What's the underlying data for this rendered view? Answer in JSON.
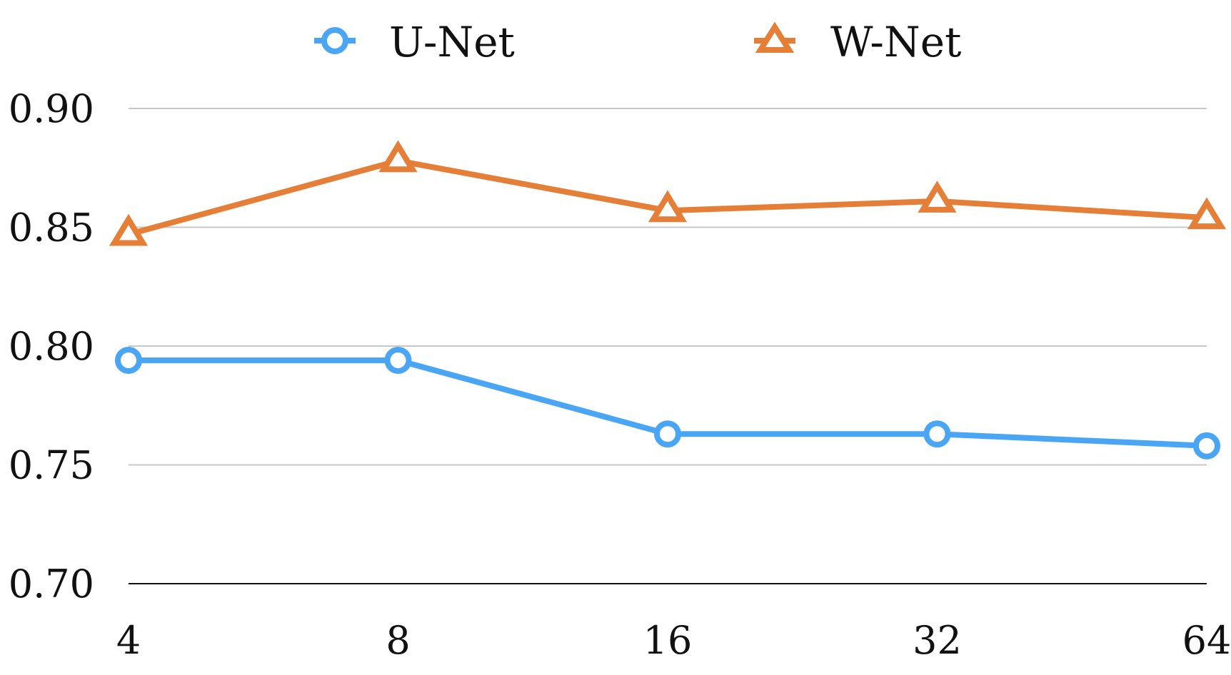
{
  "chart_data": {
    "type": "line",
    "categories": [
      "4",
      "8",
      "16",
      "32",
      "64"
    ],
    "series": [
      {
        "name": "U-Net",
        "values": [
          0.794,
          0.794,
          0.763,
          0.763,
          0.758
        ],
        "color": "#4aa6f4",
        "marker": "circle"
      },
      {
        "name": "W-Net",
        "values": [
          0.847,
          0.878,
          0.857,
          0.861,
          0.854
        ],
        "color": "#e57e36",
        "marker": "triangle"
      }
    ],
    "y_ticks": [
      "0.70",
      "0.75",
      "0.80",
      "0.85",
      "0.90"
    ],
    "ylim": [
      0.7,
      0.9
    ],
    "grid": true,
    "legend_position": "top-center",
    "axis_color": "#111111",
    "grid_color": "#c8c8c8"
  }
}
